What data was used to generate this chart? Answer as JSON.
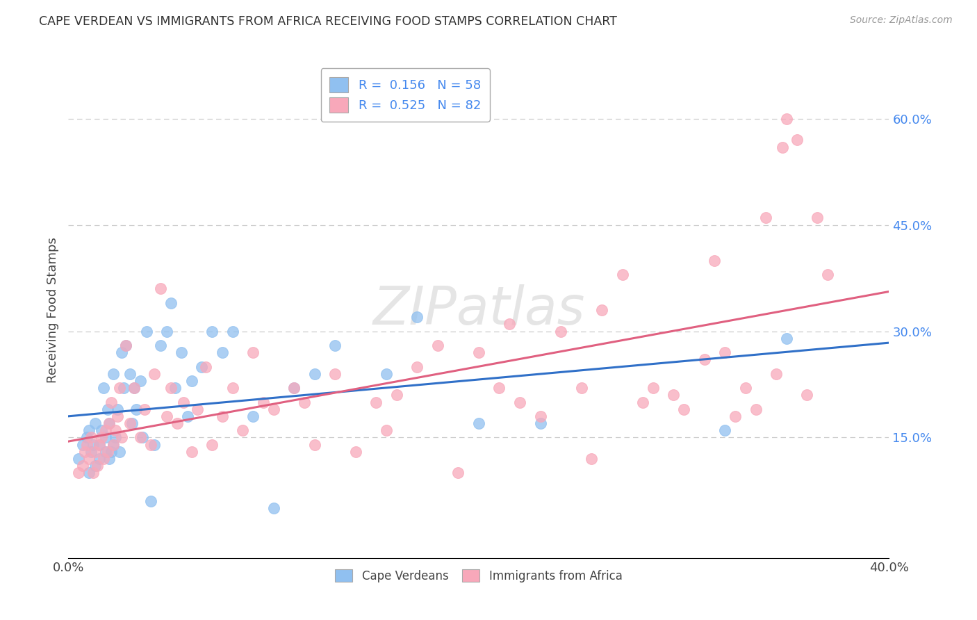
{
  "title": "CAPE VERDEAN VS IMMIGRANTS FROM AFRICA RECEIVING FOOD STAMPS CORRELATION CHART",
  "source": "Source: ZipAtlas.com",
  "ylabel": "Receiving Food Stamps",
  "xlim": [
    0.0,
    0.4
  ],
  "ylim": [
    -0.02,
    0.68
  ],
  "ytick_positions": [
    0.15,
    0.3,
    0.45,
    0.6
  ],
  "ytick_labels": [
    "15.0%",
    "30.0%",
    "45.0%",
    "60.0%"
  ],
  "blue_R": 0.156,
  "blue_N": 58,
  "pink_R": 0.525,
  "pink_N": 82,
  "blue_color": "#90C0F0",
  "pink_color": "#F8A8BA",
  "blue_line_color": "#3070C8",
  "pink_line_color": "#E06080",
  "legend_label_blue": "Cape Verdeans",
  "legend_label_pink": "Immigrants from Africa",
  "watermark": "ZIPatlas",
  "background_color": "#ffffff",
  "grid_color": "#cccccc",
  "blue_x": [
    0.005,
    0.007,
    0.009,
    0.01,
    0.01,
    0.011,
    0.012,
    0.013,
    0.013,
    0.015,
    0.015,
    0.016,
    0.017,
    0.018,
    0.018,
    0.019,
    0.02,
    0.02,
    0.021,
    0.022,
    0.022,
    0.023,
    0.024,
    0.025,
    0.026,
    0.027,
    0.028,
    0.03,
    0.031,
    0.032,
    0.033,
    0.035,
    0.036,
    0.038,
    0.04,
    0.042,
    0.045,
    0.048,
    0.05,
    0.052,
    0.055,
    0.058,
    0.06,
    0.065,
    0.07,
    0.075,
    0.08,
    0.09,
    0.1,
    0.11,
    0.12,
    0.13,
    0.155,
    0.17,
    0.2,
    0.23,
    0.32,
    0.35
  ],
  "blue_y": [
    0.12,
    0.14,
    0.15,
    0.1,
    0.16,
    0.13,
    0.14,
    0.11,
    0.17,
    0.12,
    0.14,
    0.16,
    0.22,
    0.13,
    0.15,
    0.19,
    0.12,
    0.17,
    0.13,
    0.24,
    0.14,
    0.15,
    0.19,
    0.13,
    0.27,
    0.22,
    0.28,
    0.24,
    0.17,
    0.22,
    0.19,
    0.23,
    0.15,
    0.3,
    0.06,
    0.14,
    0.28,
    0.3,
    0.34,
    0.22,
    0.27,
    0.18,
    0.23,
    0.25,
    0.3,
    0.27,
    0.3,
    0.18,
    0.05,
    0.22,
    0.24,
    0.28,
    0.24,
    0.32,
    0.17,
    0.17,
    0.16,
    0.29
  ],
  "pink_x": [
    0.005,
    0.007,
    0.008,
    0.009,
    0.01,
    0.011,
    0.012,
    0.013,
    0.014,
    0.015,
    0.016,
    0.017,
    0.018,
    0.019,
    0.02,
    0.021,
    0.022,
    0.023,
    0.024,
    0.025,
    0.026,
    0.028,
    0.03,
    0.032,
    0.035,
    0.037,
    0.04,
    0.042,
    0.045,
    0.048,
    0.05,
    0.053,
    0.056,
    0.06,
    0.063,
    0.067,
    0.07,
    0.075,
    0.08,
    0.085,
    0.09,
    0.095,
    0.1,
    0.11,
    0.115,
    0.12,
    0.13,
    0.14,
    0.15,
    0.155,
    0.16,
    0.17,
    0.18,
    0.19,
    0.2,
    0.21,
    0.215,
    0.22,
    0.23,
    0.24,
    0.25,
    0.255,
    0.26,
    0.27,
    0.28,
    0.285,
    0.295,
    0.3,
    0.31,
    0.315,
    0.32,
    0.325,
    0.33,
    0.335,
    0.34,
    0.345,
    0.348,
    0.35,
    0.355,
    0.36,
    0.365,
    0.37
  ],
  "pink_y": [
    0.1,
    0.11,
    0.13,
    0.14,
    0.12,
    0.15,
    0.1,
    0.13,
    0.11,
    0.14,
    0.15,
    0.12,
    0.16,
    0.13,
    0.17,
    0.2,
    0.14,
    0.16,
    0.18,
    0.22,
    0.15,
    0.28,
    0.17,
    0.22,
    0.15,
    0.19,
    0.14,
    0.24,
    0.36,
    0.18,
    0.22,
    0.17,
    0.2,
    0.13,
    0.19,
    0.25,
    0.14,
    0.18,
    0.22,
    0.16,
    0.27,
    0.2,
    0.19,
    0.22,
    0.2,
    0.14,
    0.24,
    0.13,
    0.2,
    0.16,
    0.21,
    0.25,
    0.28,
    0.1,
    0.27,
    0.22,
    0.31,
    0.2,
    0.18,
    0.3,
    0.22,
    0.12,
    0.33,
    0.38,
    0.2,
    0.22,
    0.21,
    0.19,
    0.26,
    0.4,
    0.27,
    0.18,
    0.22,
    0.19,
    0.46,
    0.24,
    0.56,
    0.6,
    0.57,
    0.21,
    0.46,
    0.38
  ]
}
